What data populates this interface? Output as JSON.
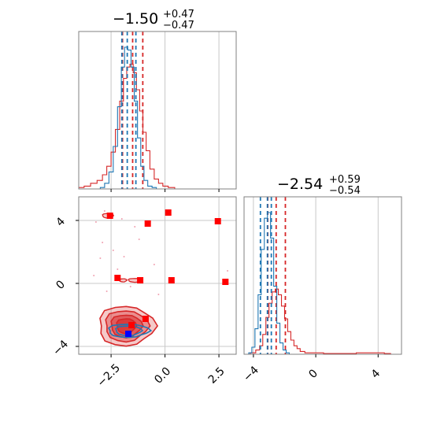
{
  "colors": {
    "red": "#d62728",
    "blue": "#1f77b4",
    "dark_red": "#a02020",
    "grid": "#c8c8c8",
    "frame": "#808080",
    "marker_red": "#ff0000",
    "marker_blue": "#0000ff"
  },
  "chart_data": [
    {
      "panel": "marginal-param-1",
      "type": "histogram",
      "title": {
        "main": "−1.50",
        "sup": "+0.47",
        "sub": "−0.47"
      },
      "xlim": [
        -4.0,
        3.3
      ],
      "xticks": [
        -2.5,
        0.0,
        2.5
      ],
      "grid": true,
      "series": [
        {
          "color": "red",
          "bins": [
            [
              -3.9,
              0.01
            ],
            [
              -3.6,
              0.02
            ],
            [
              -3.3,
              0.04
            ],
            [
              -3.0,
              0.06
            ],
            [
              -2.8,
              0.1
            ],
            [
              -2.6,
              0.16
            ],
            [
              -2.4,
              0.26
            ],
            [
              -2.2,
              0.42
            ],
            [
              -2.0,
              0.62
            ],
            [
              -1.85,
              0.78
            ],
            [
              -1.7,
              0.86
            ],
            [
              -1.55,
              0.88
            ],
            [
              -1.4,
              0.82
            ],
            [
              -1.25,
              0.7
            ],
            [
              -1.1,
              0.55
            ],
            [
              -0.95,
              0.4
            ],
            [
              -0.8,
              0.27
            ],
            [
              -0.6,
              0.14
            ],
            [
              -0.4,
              0.07
            ],
            [
              -0.2,
              0.04
            ],
            [
              0.0,
              0.02
            ],
            [
              0.3,
              0.01
            ]
          ],
          "quantiles": [
            -1.97,
            -1.5,
            -1.03
          ]
        },
        {
          "color": "blue",
          "bins": [
            [
              -2.9,
              0.01
            ],
            [
              -2.7,
              0.04
            ],
            [
              -2.5,
              0.12
            ],
            [
              -2.3,
              0.3
            ],
            [
              -2.1,
              0.58
            ],
            [
              -1.95,
              0.86
            ],
            [
              -1.8,
              1.0
            ],
            [
              -1.65,
              0.98
            ],
            [
              -1.5,
              0.86
            ],
            [
              -1.35,
              0.62
            ],
            [
              -1.2,
              0.36
            ],
            [
              -1.05,
              0.16
            ],
            [
              -0.9,
              0.06
            ],
            [
              -0.7,
              0.02
            ],
            [
              -0.5,
              0.01
            ]
          ],
          "quantiles": [
            -2.0,
            -1.75,
            -1.35
          ]
        }
      ]
    },
    {
      "panel": "marginal-param-2",
      "type": "histogram",
      "title": {
        "main": "−2.54",
        "sup": "+0.59",
        "sub": "−0.54"
      },
      "xlim": [
        -4.6,
        5.5
      ],
      "xticks": [
        -4,
        0,
        4
      ],
      "grid": true,
      "series": [
        {
          "color": "red",
          "bins": [
            [
              -4.4,
              0.0
            ],
            [
              -4.0,
              0.01
            ],
            [
              -3.7,
              0.03
            ],
            [
              -3.5,
              0.06
            ],
            [
              -3.3,
              0.14
            ],
            [
              -3.1,
              0.26
            ],
            [
              -2.9,
              0.36
            ],
            [
              -2.7,
              0.44
            ],
            [
              -2.5,
              0.46
            ],
            [
              -2.3,
              0.42
            ],
            [
              -2.1,
              0.34
            ],
            [
              -1.9,
              0.25
            ],
            [
              -1.7,
              0.16
            ],
            [
              -1.5,
              0.1
            ],
            [
              -1.3,
              0.06
            ],
            [
              -1.1,
              0.04
            ],
            [
              -0.9,
              0.02
            ],
            [
              -0.5,
              0.01
            ],
            [
              0.0,
              0.01
            ],
            [
              1.0,
              0.005
            ],
            [
              4.2,
              0.01
            ],
            [
              4.6,
              0.005
            ]
          ],
          "quantiles": [
            -3.08,
            -2.54,
            -1.95
          ]
        },
        {
          "color": "blue",
          "bins": [
            [
              -4.2,
              0.01
            ],
            [
              -4.0,
              0.05
            ],
            [
              -3.8,
              0.18
            ],
            [
              -3.6,
              0.42
            ],
            [
              -3.4,
              0.74
            ],
            [
              -3.2,
              0.96
            ],
            [
              -3.0,
              1.0
            ],
            [
              -2.8,
              0.82
            ],
            [
              -2.6,
              0.48
            ],
            [
              -2.4,
              0.22
            ],
            [
              -2.2,
              0.08
            ],
            [
              -2.0,
              0.03
            ],
            [
              -1.8,
              0.01
            ]
          ],
          "quantiles": [
            -3.55,
            -3.1,
            -2.85
          ]
        }
      ]
    },
    {
      "panel": "joint-param-1-param-2",
      "type": "contour",
      "xlim": [
        -4.0,
        3.3
      ],
      "ylim": [
        -4.5,
        5.5
      ],
      "xticks": [
        -2.5,
        0.0,
        2.5
      ],
      "yticks": [
        -4,
        0,
        4
      ],
      "grid": true,
      "contours": [
        {
          "color": "red",
          "cx": -1.8,
          "cy": -2.7,
          "levels": [
            [
              1.3,
              1.05
            ],
            [
              1.0,
              0.82
            ],
            [
              0.72,
              0.6
            ],
            [
              0.45,
              0.4
            ]
          ]
        },
        {
          "color": "blue",
          "cx": -1.7,
          "cy": -3.0,
          "levels": [
            [
              0.95,
              0.35
            ],
            [
              0.6,
              0.26
            ]
          ]
        }
      ],
      "red_markers": [
        [
          -2.55,
          4.3
        ],
        [
          -0.8,
          3.8
        ],
        [
          0.15,
          4.5
        ],
        [
          2.45,
          3.95
        ],
        [
          -2.2,
          0.35
        ],
        [
          -1.15,
          0.2
        ],
        [
          0.3,
          0.2
        ],
        [
          2.8,
          0.1
        ],
        [
          -0.9,
          -2.25
        ],
        [
          -1.55,
          -2.65
        ]
      ],
      "blue_markers": [
        [
          -1.7,
          -3.2
        ]
      ],
      "scatter_points": [
        [
          -2.8,
          4.6
        ],
        [
          -3.2,
          3.9
        ],
        [
          -2.0,
          4.1
        ],
        [
          -1.4,
          3.6
        ],
        [
          -2.4,
          2.1
        ],
        [
          -3.0,
          1.6
        ],
        [
          -2.2,
          0.9
        ],
        [
          -1.6,
          -0.2
        ],
        [
          -2.7,
          -0.5
        ],
        [
          -0.5,
          1.2
        ],
        [
          -1.2,
          2.8
        ],
        [
          2.9,
          0.8
        ],
        [
          -3.3,
          0.5
        ],
        [
          -0.3,
          -0.7
        ],
        [
          -2.9,
          2.6
        ],
        [
          -1.9,
          1.7
        ]
      ]
    }
  ]
}
